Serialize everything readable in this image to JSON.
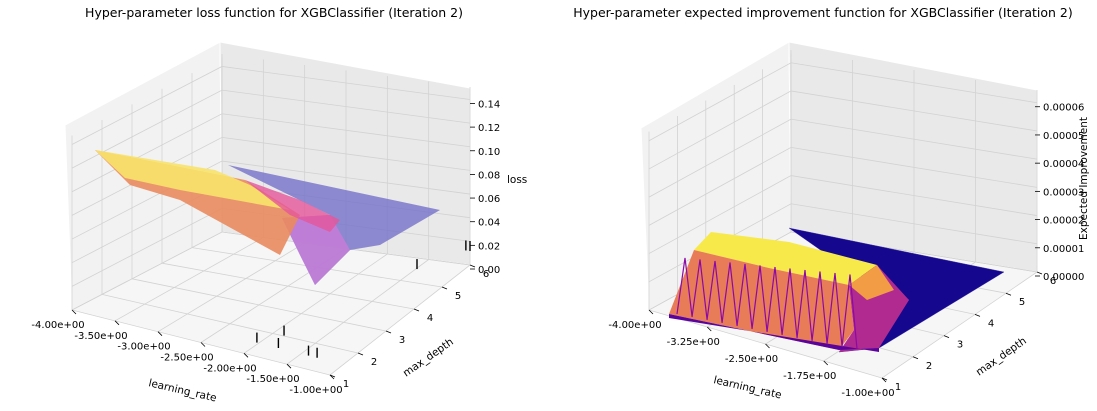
{
  "colors": {
    "pane_left": "#f2f2f2",
    "pane_right": "#e9e9e9",
    "pane_floor": "#f6f6f6",
    "grid": "#d2d2d2",
    "surface_loss_high": "#f8e36b",
    "surface_loss_mid": "#e98b5e",
    "surface_loss_low": "#7470c9",
    "surface_ei_top": "#f7e94a",
    "surface_ei_side": "#8b0aa5",
    "surface_ei_floor": "#15078e"
  },
  "chart_data": [
    {
      "type": "surface3d",
      "title": "Hyper-parameter loss function for XGBClassifier (Iteration 2)",
      "xlabel": "learning_rate",
      "ylabel": "max_depth",
      "zlabel": "loss",
      "colormap": "plasma",
      "x_ticks": [
        "-4.00e+00",
        "-3.50e+00",
        "-3.00e+00",
        "-2.50e+00",
        "-2.00e+00",
        "-1.50e+00",
        "-1.00e+00"
      ],
      "y_ticks": [
        "1",
        "2",
        "3",
        "4",
        "5",
        "6"
      ],
      "z_ticks": [
        "0.00",
        "0.02",
        "0.04",
        "0.06",
        "0.08",
        "0.10",
        "0.12",
        "0.14"
      ],
      "xlim": [
        -4,
        -1
      ],
      "ylim": [
        1,
        6
      ],
      "zlim": [
        0,
        0.15
      ],
      "surface_profile": [
        {
          "x": -4.0,
          "y": 6,
          "z": 0.13
        },
        {
          "x": -3.5,
          "y": 6,
          "z": 0.122
        },
        {
          "x": -3.0,
          "y": 6,
          "z": 0.115
        },
        {
          "x": -2.5,
          "y": 6,
          "z": 0.105
        },
        {
          "x": -2.0,
          "y": 6,
          "z": 0.07
        },
        {
          "x": -1.5,
          "y": 6,
          "z": 0.058
        },
        {
          "x": -1.0,
          "y": 6,
          "z": 0.056
        }
      ],
      "samples": [
        {
          "x": -1.85,
          "y": 1.0,
          "z": 0.0
        },
        {
          "x": -1.6,
          "y": 1.0,
          "z": 0.0
        },
        {
          "x": -1.25,
          "y": 1.0,
          "z": 0.0
        },
        {
          "x": -1.15,
          "y": 1.0,
          "z": 0.0
        },
        {
          "x": -1.7,
          "y": 1.5,
          "z": 0.0
        },
        {
          "x": -1.3,
          "y": 5.0,
          "z": 0.0
        },
        {
          "x": -1.05,
          "y": 6.0,
          "z": 0.0
        },
        {
          "x": -1.0,
          "y": 6.0,
          "z": 0.0
        }
      ]
    },
    {
      "type": "surface3d",
      "title": "Hyper-parameter expected improvement function for XGBClassifier (Iteration 2)",
      "xlabel": "learning_rate",
      "ylabel": "max_depth",
      "zlabel": "Expected Improvement",
      "colormap": "plasma",
      "x_ticks": [
        "-4.00e+00",
        "-3.25e+00",
        "-2.50e+00",
        "-1.75e+00",
        "-1.00e+00"
      ],
      "y_ticks": [
        "1",
        "2",
        "3",
        "4",
        "5",
        "6"
      ],
      "z_ticks": [
        "0.00000",
        "0.00001",
        "0.00002",
        "0.00003",
        "0.00004",
        "0.00005",
        "0.00006"
      ],
      "xlim": [
        -4,
        -1
      ],
      "ylim": [
        1,
        6
      ],
      "zlim": [
        0,
        6.5e-05
      ],
      "surface_profile": [
        {
          "x": -4.0,
          "y": 1,
          "z": 1.75e-05
        },
        {
          "x": -3.25,
          "y": 1,
          "z": 1.75e-05
        },
        {
          "x": -2.5,
          "y": 1,
          "z": 1.75e-05
        },
        {
          "x": -2.2,
          "y": 1,
          "z": 1.7e-05
        },
        {
          "x": -1.9,
          "y": 1,
          "z": 6e-06
        },
        {
          "x": -1.75,
          "y": 1,
          "z": 0.0
        },
        {
          "x": -1.0,
          "y": 1,
          "z": 0.0
        }
      ]
    }
  ]
}
